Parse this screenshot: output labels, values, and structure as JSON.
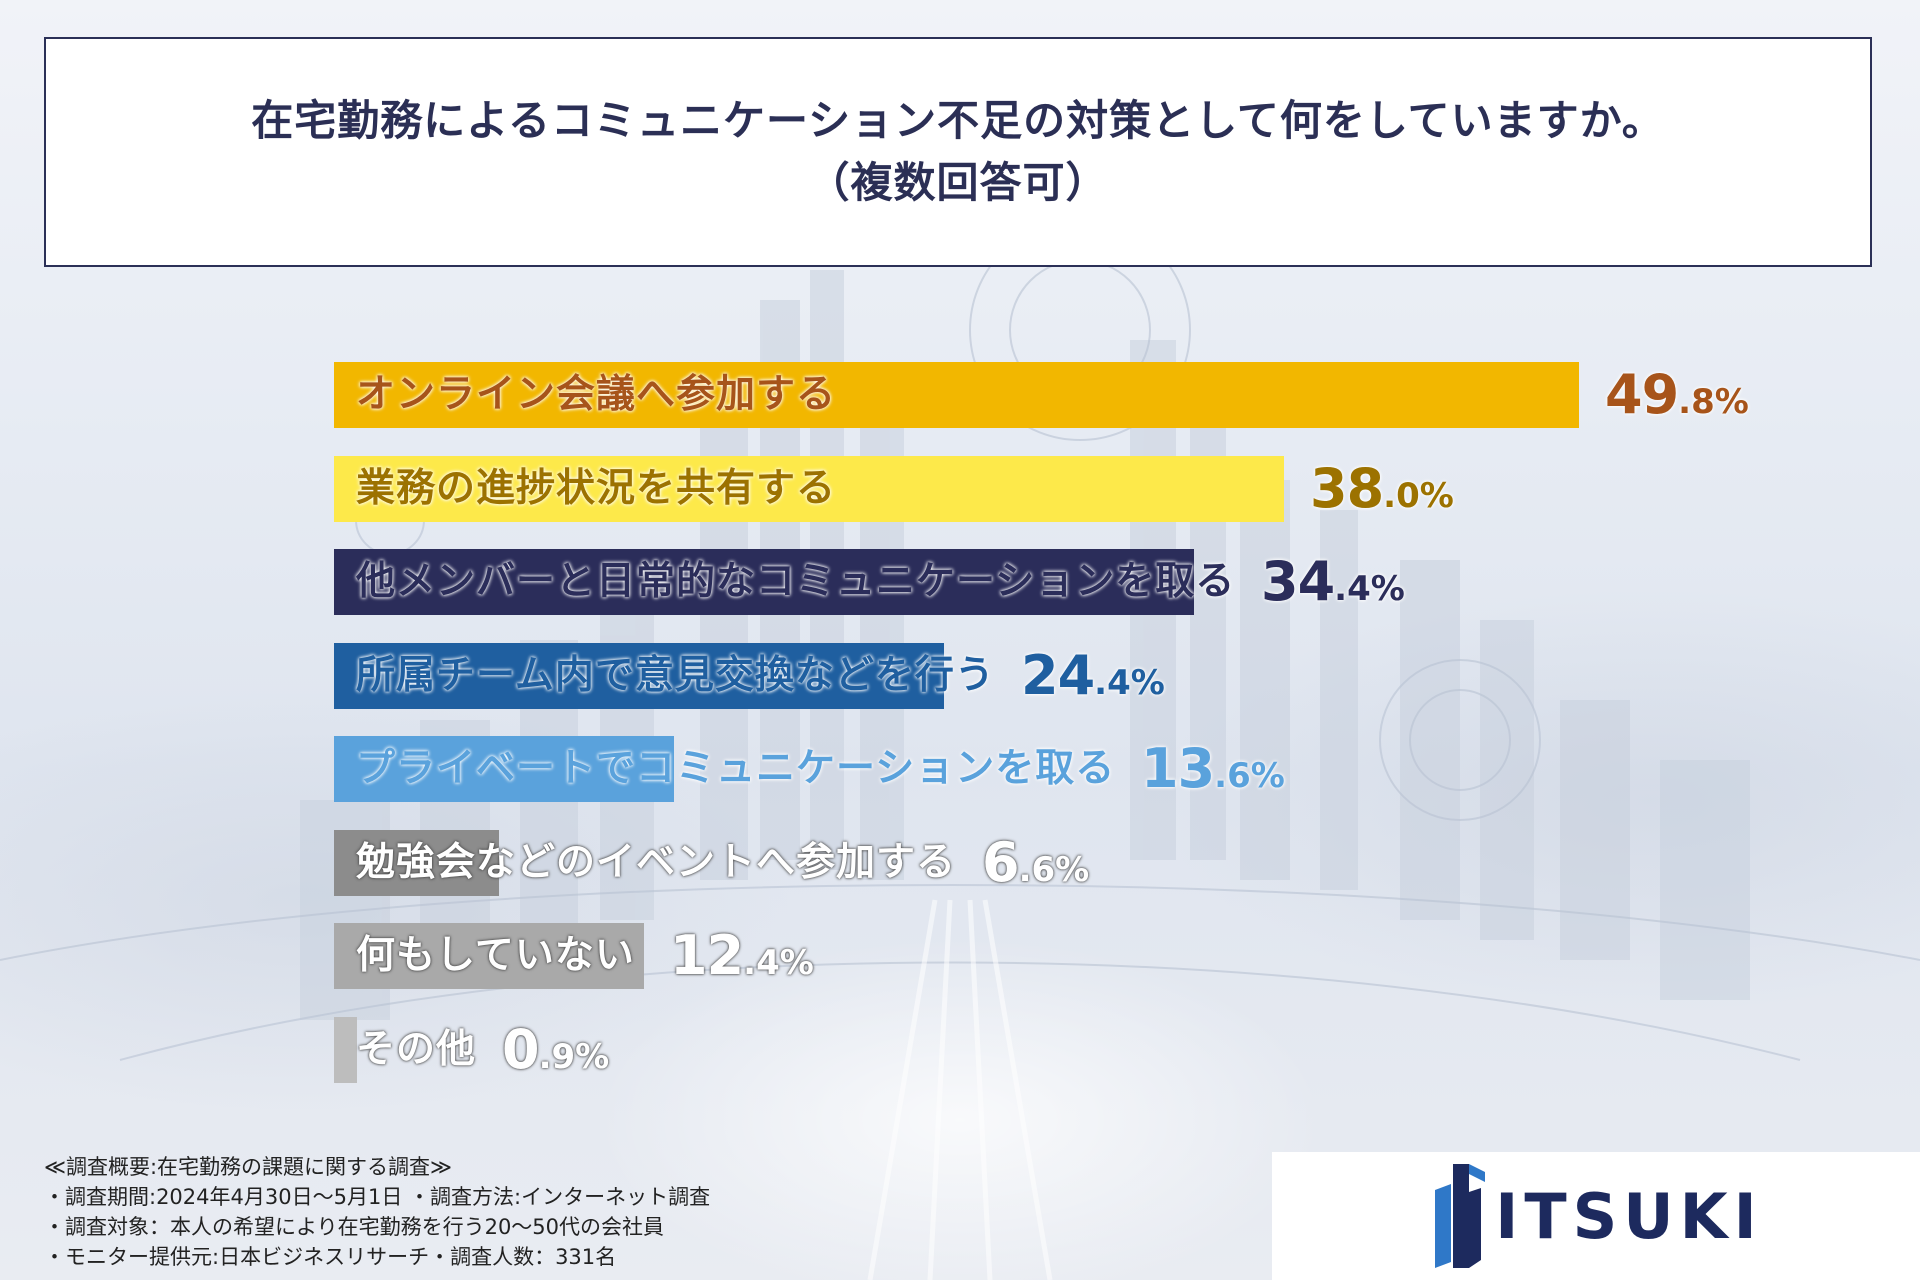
{
  "title": {
    "line1": "在宅勤務によるコミュニケーション不足の対策として何をしていますか。",
    "line2": "（複数回答可）"
  },
  "chart_data": {
    "type": "bar",
    "orientation": "horizontal",
    "unit": "%",
    "xlim": [
      0,
      50
    ],
    "categories": [
      "オンライン会議へ参加する",
      "業務の進捗状況を共有する",
      "他メンバーと日常的なコミュニケーションを取る",
      "所属チーム内で意見交換などを行う",
      "プライベートでコミュニケーションを取る",
      "勉強会などのイベントへ参加する",
      "何もしていない",
      "その他"
    ],
    "values": [
      49.8,
      38.0,
      34.4,
      24.4,
      13.6,
      6.6,
      12.4,
      0.9
    ],
    "value_labels": [
      {
        "int": "49",
        "dec": ".8%"
      },
      {
        "int": "38",
        "dec": ".0%"
      },
      {
        "int": "34",
        "dec": ".4%"
      },
      {
        "int": "24",
        "dec": ".4%"
      },
      {
        "int": "13",
        "dec": ".6%"
      },
      {
        "int": "6",
        "dec": ".6%"
      },
      {
        "int": "12",
        "dec": ".4%"
      },
      {
        "int": "0",
        "dec": ".9%"
      }
    ],
    "bar_colors": [
      "#f2b700",
      "#fde94a",
      "#2b2d5a",
      "#1f5fa0",
      "#5aa2dc",
      "#8c8c8c",
      "#a9a9a9",
      "#bdbdbd"
    ],
    "label_colors": [
      "#a7541a",
      "#9c7200",
      "#ffffff",
      "#ffffff",
      "#ffffff",
      "#ffffff",
      "#ffffff",
      "#ffffff"
    ],
    "outside_label_colors": [
      "#a7541a",
      "#9c7200",
      "#2b2d5a",
      "#1f5fa0",
      "#5aa2dc",
      "#ffffff",
      "#ffffff",
      "#ffffff"
    ],
    "value_colors": [
      "#a7541a",
      "#9c7200",
      "#2b2d5a",
      "#1f5fa0",
      "#5aa2dc",
      "#ffffff",
      "#ffffff",
      "#ffffff"
    ]
  },
  "survey_notes": [
    "≪調査概要:在宅勤務の課題に関する調査≫",
    "・調査期間:2024年4月30日〜5月1日 ・調査方法:インターネット調査",
    "・調査対象：本人の希望により在宅勤務を行う20〜50代の会社員",
    "・モニター提供元:日本ビジネスリサーチ・調査人数：331名"
  ],
  "logo": {
    "text": "ITSUKI",
    "icon": "itsuki-logo-mark",
    "color": "#1d2a5e"
  }
}
